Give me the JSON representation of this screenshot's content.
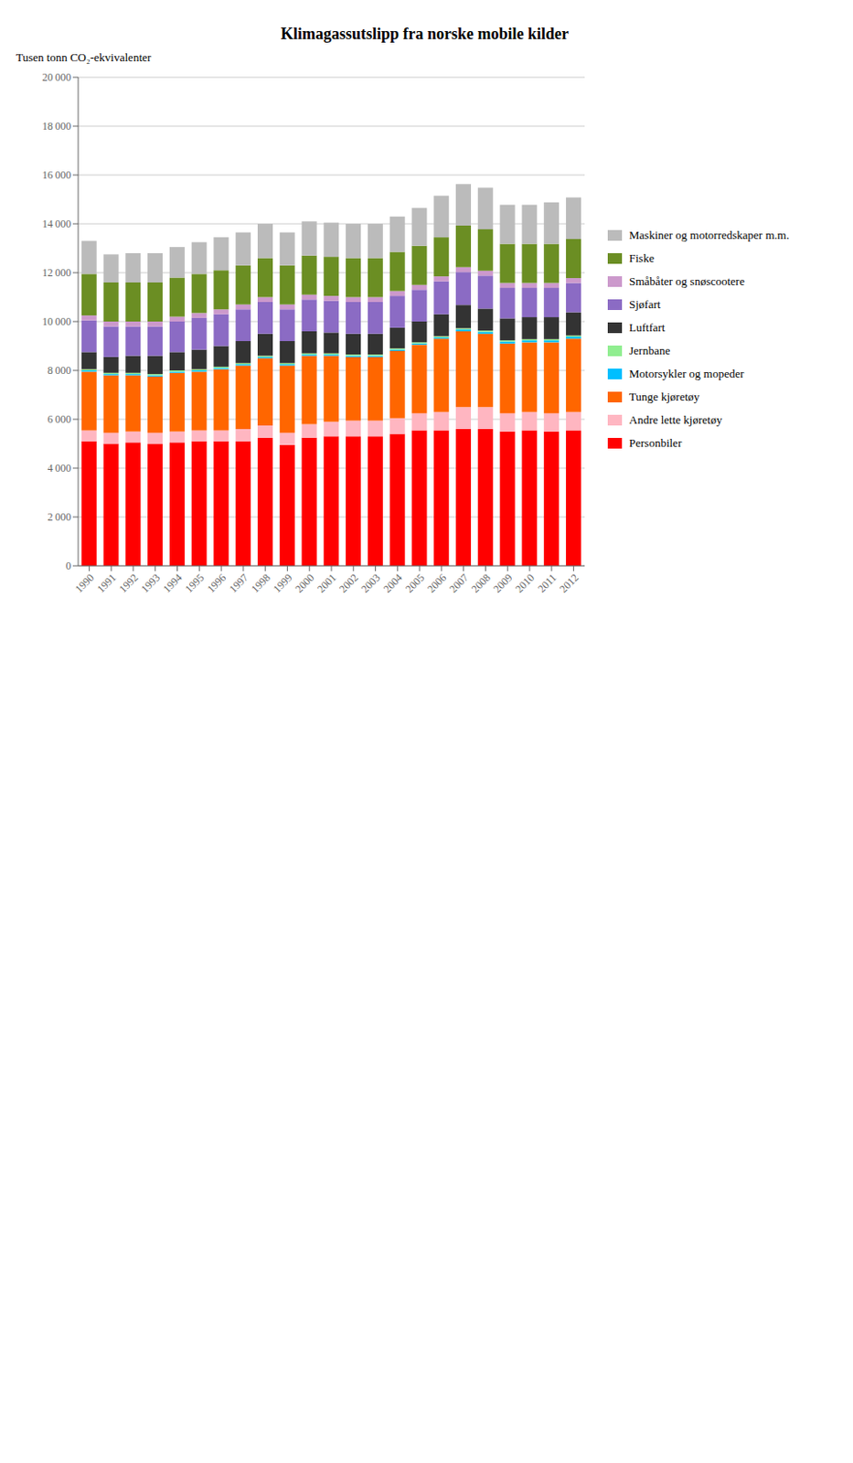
{
  "chart_data": {
    "type": "bar",
    "stacked": true,
    "grid": true,
    "legend": "right",
    "title": "Klimagassutslipp fra norske mobile kilder",
    "ylabel": "Tusen tonn CO₂-ekvivalenter",
    "categories": [
      "1990",
      "1991",
      "1992",
      "1993",
      "1994",
      "1995",
      "1996",
      "1997",
      "1998",
      "1999",
      "2000",
      "2001",
      "2002",
      "2003",
      "2004",
      "2005",
      "2006",
      "2007",
      "2008",
      "2009",
      "2010",
      "2011",
      "2012"
    ],
    "ylim": [
      0,
      20000
    ],
    "yticks": [
      0,
      {
        "value": 2000,
        "label": "2 000"
      },
      {
        "value": 4000,
        "label": "4 000"
      },
      {
        "value": 6000,
        "label": "6 000"
      },
      {
        "value": 8000,
        "label": "8 000"
      },
      {
        "value": 10000,
        "label": "10 000"
      },
      {
        "value": 12000,
        "label": "12 000"
      },
      {
        "value": 14000,
        "label": "14 000"
      },
      {
        "value": 16000,
        "label": "16 000"
      },
      {
        "value": 18000,
        "label": "18 000"
      },
      {
        "value": 20000,
        "label": "20 000"
      }
    ],
    "series": [
      {
        "name": "Personbiler",
        "color": "#FF0000",
        "values": [
          5100,
          5000,
          5050,
          5000,
          5050,
          5100,
          5100,
          5100,
          5250,
          4950,
          5250,
          5300,
          5300,
          5300,
          5400,
          5550,
          5550,
          5600,
          5600,
          5500,
          5550,
          5500,
          5550
        ]
      },
      {
        "name": "Andre lette kjøretøy",
        "color": "#FFB6C1",
        "values": [
          450,
          450,
          450,
          450,
          450,
          450,
          450,
          500,
          500,
          500,
          550,
          600,
          650,
          650,
          650,
          700,
          750,
          900,
          900,
          750,
          750,
          750,
          750
        ]
      },
      {
        "name": "Tunge kjøretøy",
        "color": "#FF6600",
        "values": [
          2400,
          2350,
          2300,
          2300,
          2400,
          2400,
          2500,
          2600,
          2750,
          2750,
          2800,
          2700,
          2600,
          2600,
          2750,
          2800,
          3000,
          3100,
          3000,
          2850,
          2850,
          2900,
          3000
        ]
      },
      {
        "name": "Motorsykler og mopeder",
        "color": "#00BFFF",
        "values": [
          50,
          50,
          50,
          50,
          50,
          50,
          50,
          50,
          50,
          50,
          50,
          50,
          50,
          50,
          50,
          50,
          50,
          80,
          80,
          80,
          80,
          80,
          80
        ]
      },
      {
        "name": "Jernbane",
        "color": "#90EE90",
        "values": [
          50,
          50,
          50,
          50,
          50,
          50,
          50,
          50,
          50,
          50,
          50,
          50,
          50,
          50,
          50,
          50,
          50,
          50,
          50,
          50,
          50,
          50,
          50
        ]
      },
      {
        "name": "Luftfart",
        "color": "#333333",
        "values": [
          700,
          650,
          700,
          750,
          750,
          800,
          850,
          900,
          900,
          900,
          900,
          850,
          850,
          850,
          850,
          850,
          900,
          950,
          900,
          900,
          900,
          900,
          950
        ]
      },
      {
        "name": "Sjøfart",
        "color": "#8B6BC4",
        "values": [
          1300,
          1250,
          1200,
          1200,
          1250,
          1300,
          1300,
          1300,
          1300,
          1300,
          1300,
          1300,
          1300,
          1300,
          1300,
          1300,
          1350,
          1350,
          1350,
          1250,
          1200,
          1200,
          1200
        ]
      },
      {
        "name": "Småbåter og snøscootere",
        "color": "#CC99CC",
        "values": [
          200,
          200,
          200,
          200,
          200,
          200,
          200,
          200,
          200,
          200,
          200,
          200,
          200,
          200,
          200,
          200,
          200,
          200,
          200,
          200,
          200,
          200,
          200
        ]
      },
      {
        "name": "Fiske",
        "color": "#6B8E23",
        "values": [
          1700,
          1600,
          1600,
          1600,
          1600,
          1600,
          1600,
          1600,
          1600,
          1600,
          1600,
          1600,
          1600,
          1600,
          1600,
          1600,
          1600,
          1700,
          1700,
          1600,
          1600,
          1600,
          1600
        ]
      },
      {
        "name": "Maskiner og motorredskaper m.m.",
        "color": "#BBBBBB",
        "values": [
          1350,
          1150,
          1200,
          1200,
          1250,
          1300,
          1350,
          1350,
          1400,
          1350,
          1400,
          1400,
          1400,
          1400,
          1450,
          1550,
          1700,
          1700,
          1700,
          1600,
          1600,
          1700,
          1700
        ]
      }
    ]
  }
}
